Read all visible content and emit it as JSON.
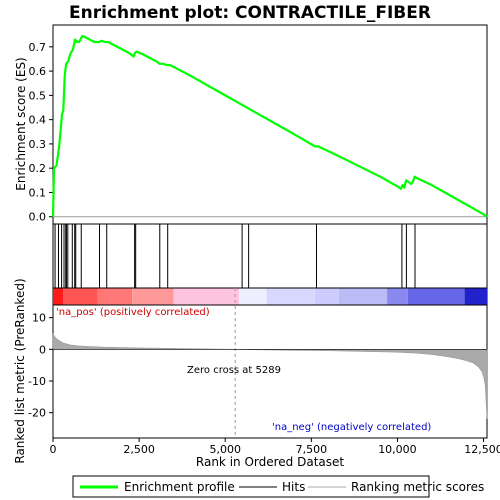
{
  "chart_data": [
    {
      "type": "line",
      "title": "Enrichment plot: CONTRACTILE_FIBER",
      "ylabel": "Enrichment score (ES)",
      "xlim": [
        0,
        12600
      ],
      "ylim": [
        -0.03,
        0.79
      ],
      "yticks": [
        "0.0",
        "0.1",
        "0.2",
        "0.3",
        "0.4",
        "0.5",
        "0.6",
        "0.7"
      ],
      "series": [
        {
          "color": "#00ff00",
          "x": [
            0,
            30,
            100,
            180,
            260,
            300,
            340,
            380,
            440,
            500,
            580,
            640,
            700,
            760,
            850,
            1000,
            1200,
            1350,
            1400,
            1500,
            1600,
            1800,
            2000,
            2200,
            2340,
            2380,
            2420,
            2600,
            2800,
            3000,
            3100,
            3200,
            3300,
            3400,
            3600,
            3800,
            4000,
            5000,
            5500,
            6000,
            6500,
            7000,
            7600,
            7700,
            8000,
            8500,
            9000,
            9500,
            10000,
            10100,
            10150,
            10200,
            10250,
            10300,
            10350,
            10400,
            10450,
            10500,
            10550,
            11000,
            11500,
            12000,
            12500,
            12600
          ],
          "y": [
            0.0,
            0.2,
            0.21,
            0.29,
            0.42,
            0.44,
            0.58,
            0.63,
            0.64,
            0.67,
            0.69,
            0.73,
            0.72,
            0.72,
            0.745,
            0.735,
            0.72,
            0.72,
            0.725,
            0.72,
            0.72,
            0.705,
            0.69,
            0.675,
            0.66,
            0.675,
            0.68,
            0.67,
            0.655,
            0.64,
            0.63,
            0.63,
            0.625,
            0.625,
            0.61,
            0.595,
            0.58,
            0.5,
            0.46,
            0.42,
            0.38,
            0.34,
            0.29,
            0.29,
            0.27,
            0.235,
            0.2,
            0.165,
            0.125,
            0.115,
            0.13,
            0.12,
            0.15,
            0.145,
            0.14,
            0.135,
            0.145,
            0.165,
            0.16,
            0.13,
            0.09,
            0.05,
            0.01,
            0.0
          ]
        }
      ]
    },
    {
      "type": "scatter",
      "title": "",
      "hits": [
        60,
        160,
        250,
        320,
        370,
        390,
        430,
        560,
        630,
        660,
        820,
        1350,
        1560,
        2370,
        2400,
        3100,
        3330,
        5490,
        5680,
        7650,
        10130,
        10260,
        10510
      ]
    },
    {
      "type": "heatmap",
      "title": "",
      "colormap": [
        "#ff0000",
        "#ffffff",
        "#0000ff"
      ],
      "xlim": [
        0,
        12600
      ]
    },
    {
      "type": "area",
      "title": "",
      "ylabel": "Ranked list metric (PreRanked)",
      "xlabel": "Rank in Ordered Dataset",
      "xlim": [
        0,
        12600
      ],
      "ylim": [
        -28,
        14
      ],
      "yticks": [
        "10",
        "0",
        "-10",
        "-20"
      ],
      "xticks": [
        "0",
        "2,500",
        "5,000",
        "7,500",
        "10,000",
        "12,500"
      ],
      "series": [
        {
          "color": "#999999",
          "x": [
            0,
            50,
            100,
            200,
            300,
            400,
            500,
            700,
            1000,
            1500,
            2000,
            2500,
            3000,
            4000,
            5000,
            5289,
            6000,
            7000,
            8000,
            9000,
            10000,
            10500,
            11000,
            11500,
            11800,
            12000,
            12200,
            12350,
            12450,
            12500,
            12550,
            12580,
            12600
          ],
          "y": [
            5.0,
            4.0,
            3.4,
            2.6,
            2.0,
            1.7,
            1.4,
            1.1,
            0.9,
            0.7,
            0.55,
            0.45,
            0.35,
            0.2,
            0.05,
            0.0,
            -0.15,
            -0.3,
            -0.45,
            -0.65,
            -0.9,
            -1.2,
            -1.6,
            -2.4,
            -3.0,
            -3.6,
            -4.3,
            -5.5,
            -7.0,
            -8.5,
            -11.5,
            -18.0,
            -22.0
          ]
        }
      ],
      "annotations": [
        "'na_pos' (positively correlated)",
        "Zero cross at 5289",
        "'na_neg' (negatively correlated)"
      ],
      "zero_cross": 5289
    }
  ],
  "legend": {
    "items": [
      {
        "label": "Enrichment profile",
        "color": "#00ff00"
      },
      {
        "label": "Hits",
        "color": "#000000"
      },
      {
        "label": "Ranking metric scores",
        "color": "#aaaaaa"
      }
    ]
  }
}
